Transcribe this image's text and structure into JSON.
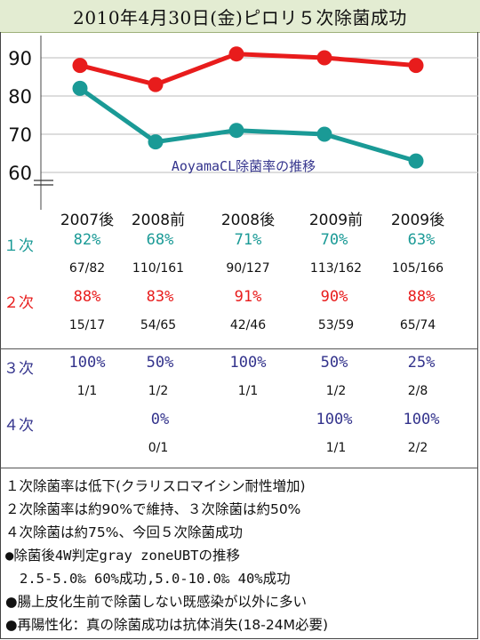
{
  "title": "2010年4月30日(金)ピロリ５次除菌成功",
  "colors": {
    "first": "#1a9a96",
    "second": "#e81c1c",
    "third": "#33338c",
    "header_bg": "#e3ecd2"
  },
  "chart_data": {
    "type": "line",
    "categories": [
      "2007後",
      "2008前",
      "2008後",
      "2009前",
      "2009後"
    ],
    "series": [
      {
        "name": "2次",
        "values": [
          88,
          83,
          91,
          90,
          88
        ],
        "color": "#e81c1c"
      },
      {
        "name": "1次",
        "values": [
          82,
          68,
          71,
          70,
          63
        ],
        "color": "#1a9a96"
      }
    ],
    "yticks": [
      90,
      80,
      70,
      60
    ],
    "ylim": [
      57,
      96
    ],
    "annotation": "AoyamaCL除菌率の推移",
    "grid": true,
    "axis_break": true
  },
  "table": {
    "rows": [
      {
        "label": "１次",
        "color": "#1a9a96",
        "cells": [
          {
            "pct": "82%",
            "frac": "67/82"
          },
          {
            "pct": "68%",
            "frac": "110/161"
          },
          {
            "pct": "71%",
            "frac": "90/127"
          },
          {
            "pct": "70%",
            "frac": "113/162"
          },
          {
            "pct": "63%",
            "frac": "105/166"
          }
        ]
      },
      {
        "label": "２次",
        "color": "#e81c1c",
        "cells": [
          {
            "pct": "88%",
            "frac": "15/17"
          },
          {
            "pct": "83%",
            "frac": "54/65"
          },
          {
            "pct": "91%",
            "frac": "42/46"
          },
          {
            "pct": "90%",
            "frac": "53/59"
          },
          {
            "pct": "88%",
            "frac": "65/74"
          }
        ]
      },
      {
        "label": "３次",
        "color": "#33338c",
        "cells": [
          {
            "pct": "100%",
            "frac": "1/1"
          },
          {
            "pct": "50%",
            "frac": "1/2"
          },
          {
            "pct": "100%",
            "frac": "1/1"
          },
          {
            "pct": "50%",
            "frac": "1/2"
          },
          {
            "pct": "25%",
            "frac": "2/8"
          }
        ]
      },
      {
        "label": "４次",
        "color": "#33338c",
        "cells": [
          {
            "pct": "",
            "frac": ""
          },
          {
            "pct": "0%",
            "frac": "0/1"
          },
          {
            "pct": "",
            "frac": ""
          },
          {
            "pct": "100%",
            "frac": "1/1"
          },
          {
            "pct": "100%",
            "frac": "2/2"
          }
        ]
      }
    ]
  },
  "notes": [
    "１次除菌率は低下(クラリスロマイシン耐性増加)",
    "２次除菌率は約90%で維持、３次除菌は約50%",
    "４次除菌は約75%、今回５次除菌成功",
    "●除菌後4W判定gray zoneUBTの推移",
    "2.5-5.0‰ 60%成功,5.0-10.0‰ 40%成功",
    "●腸上皮化生前で除菌しない既感染が以外に多い",
    "●再陽性化：真の除菌成功は抗体消失(18-24M必要)"
  ]
}
